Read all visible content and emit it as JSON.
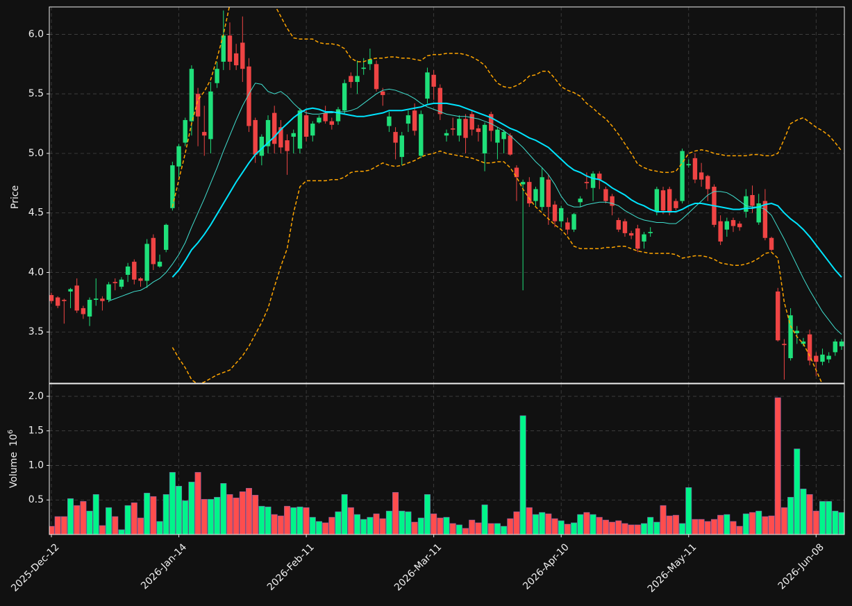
{
  "chart_data": {
    "type": "candlestick",
    "y_label": "Price",
    "volume_label": "Volume",
    "volume_scale_base": "10",
    "volume_scale_exponent": "6",
    "categories": [
      "2025-Dec-12",
      null,
      null,
      null,
      null,
      null,
      null,
      null,
      null,
      null,
      null,
      null,
      null,
      null,
      null,
      null,
      null,
      null,
      null,
      null,
      "2026-Jan-14",
      null,
      null,
      null,
      null,
      null,
      null,
      null,
      null,
      null,
      null,
      null,
      null,
      null,
      null,
      null,
      null,
      null,
      null,
      null,
      "2026-Feb-11",
      null,
      null,
      null,
      null,
      null,
      null,
      null,
      null,
      null,
      null,
      null,
      null,
      null,
      null,
      null,
      null,
      null,
      null,
      null,
      "2026-Mar-11",
      null,
      null,
      null,
      null,
      null,
      null,
      null,
      null,
      null,
      null,
      null,
      null,
      null,
      null,
      null,
      null,
      null,
      null,
      null,
      "2026-Apr-10",
      null,
      null,
      null,
      null,
      null,
      null,
      null,
      null,
      null,
      null,
      null,
      null,
      null,
      null,
      null,
      null,
      null,
      null,
      null,
      "2026-May-11",
      null,
      null,
      null,
      null,
      null,
      null,
      null,
      null,
      null,
      null,
      null,
      null,
      null,
      null,
      null,
      null,
      null,
      null,
      null,
      "2026-Jun-08",
      null,
      null,
      null,
      null
    ],
    "open": [
      3.81,
      3.79,
      3.77,
      3.84,
      3.89,
      3.7,
      3.63,
      3.77,
      3.78,
      3.77,
      3.92,
      3.88,
      3.98,
      4.09,
      3.95,
      3.93,
      4.29,
      4.05,
      4.19,
      4.54,
      4.89,
      5.09,
      5.27,
      5.5,
      5.18,
      5.12,
      5.59,
      5.77,
      5.99,
      5.84,
      5.93,
      5.73,
      5.28,
      4.98,
      5.06,
      5.34,
      5.22,
      5.11,
      5.14,
      5.04,
      5.32,
      5.15,
      5.26,
      5.34,
      5.27,
      5.27,
      5.36,
      5.65,
      5.6,
      5.71,
      5.75,
      5.75,
      5.52,
      5.23,
      5.18,
      4.97,
      5.25,
      5.36,
      4.98,
      5.46,
      5.66,
      5.55,
      5.15,
      5.21,
      5.15,
      5.29,
      5.33,
      5.21,
      5.0,
      5.33,
      5.09,
      5.12,
      5.15,
      4.88,
      4.74,
      4.76,
      4.6,
      4.55,
      4.78,
      4.57,
      4.43,
      4.42,
      4.36,
      4.59,
      4.76,
      4.71,
      4.83,
      4.7,
      4.64,
      4.44,
      4.43,
      4.33,
      4.37,
      4.26,
      4.33,
      4.51,
      4.69,
      4.7,
      4.6,
      4.6,
      4.9,
      4.96,
      4.84,
      4.81,
      4.72,
      4.43,
      4.36,
      4.44,
      4.41,
      4.51,
      4.65,
      4.42,
      4.6,
      4.29,
      3.84,
      3.4,
      3.28,
      3.49,
      3.4,
      3.48,
      3.3,
      3.25,
      3.27,
      3.33,
      3.38
    ],
    "high": [
      3.83,
      3.8,
      3.78,
      3.87,
      3.95,
      3.72,
      3.79,
      3.95,
      3.8,
      3.92,
      3.95,
      3.96,
      4.08,
      4.11,
      3.96,
      4.28,
      4.32,
      4.15,
      4.41,
      4.93,
      5.08,
      5.3,
      5.74,
      5.55,
      5.4,
      5.6,
      5.77,
      6.2,
      6.1,
      5.92,
      6.15,
      5.8,
      5.3,
      5.16,
      5.32,
      5.4,
      5.28,
      5.16,
      5.2,
      5.38,
      5.36,
      5.27,
      5.32,
      5.4,
      5.3,
      5.39,
      5.62,
      5.68,
      5.78,
      5.8,
      5.88,
      5.78,
      5.55,
      5.35,
      5.22,
      5.18,
      5.36,
      5.42,
      5.36,
      5.72,
      5.7,
      5.58,
      5.2,
      5.3,
      5.32,
      5.33,
      5.36,
      5.24,
      5.26,
      5.35,
      5.22,
      5.2,
      5.17,
      4.9,
      4.78,
      4.8,
      4.72,
      4.88,
      4.82,
      4.6,
      4.56,
      4.46,
      4.5,
      4.64,
      4.84,
      4.85,
      4.85,
      4.72,
      4.66,
      4.46,
      4.45,
      4.35,
      4.4,
      4.34,
      4.38,
      4.72,
      4.72,
      4.72,
      4.62,
      5.04,
      4.95,
      5.0,
      4.92,
      4.82,
      4.74,
      4.48,
      4.46,
      4.46,
      4.43,
      4.7,
      4.73,
      4.66,
      4.7,
      4.3,
      3.87,
      3.44,
      3.7,
      3.55,
      3.45,
      3.52,
      3.33,
      3.36,
      3.33,
      3.44,
      3.44
    ],
    "low": [
      3.74,
      3.7,
      3.57,
      3.7,
      3.66,
      3.61,
      3.55,
      3.72,
      3.68,
      3.75,
      3.85,
      3.86,
      3.92,
      3.9,
      3.88,
      3.87,
      4.02,
      4.04,
      4.17,
      4.52,
      4.8,
      5.06,
      5.15,
      5.06,
      4.98,
      5.0,
      5.55,
      5.7,
      5.7,
      5.7,
      5.6,
      5.18,
      4.92,
      4.9,
      5.0,
      5.0,
      5.0,
      4.82,
      5.0,
      5.0,
      5.1,
      5.1,
      5.25,
      5.25,
      5.2,
      5.24,
      5.33,
      5.55,
      5.5,
      5.66,
      5.7,
      5.52,
      5.4,
      5.18,
      4.95,
      4.9,
      5.18,
      5.15,
      4.96,
      5.42,
      5.45,
      5.28,
      5.1,
      5.15,
      5.1,
      5.0,
      5.15,
      5.1,
      4.85,
      5.1,
      4.95,
      5.0,
      4.98,
      4.6,
      3.85,
      4.55,
      4.55,
      4.52,
      4.4,
      4.38,
      4.38,
      4.32,
      4.34,
      4.55,
      4.7,
      4.6,
      4.7,
      4.58,
      4.48,
      4.34,
      4.3,
      4.28,
      4.17,
      4.2,
      4.3,
      4.48,
      4.49,
      4.48,
      4.52,
      4.58,
      4.88,
      4.75,
      4.72,
      4.6,
      4.38,
      4.23,
      4.3,
      4.34,
      4.35,
      4.46,
      4.5,
      4.4,
      4.27,
      4.18,
      3.42,
      3.1,
      3.26,
      3.4,
      3.38,
      3.22,
      3.13,
      3.22,
      3.24,
      3.3,
      3.35
    ],
    "close": [
      3.76,
      3.72,
      3.76,
      3.86,
      3.68,
      3.65,
      3.77,
      3.78,
      3.76,
      3.9,
      3.91,
      3.94,
      4.05,
      3.94,
      3.93,
      4.24,
      4.07,
      4.09,
      4.4,
      4.9,
      5.06,
      5.28,
      5.71,
      5.31,
      5.15,
      5.52,
      5.71,
      5.99,
      5.77,
      5.74,
      5.71,
      5.23,
      4.99,
      5.14,
      5.28,
      5.08,
      5.05,
      5.02,
      5.17,
      5.36,
      5.14,
      5.25,
      5.3,
      5.27,
      5.24,
      5.37,
      5.59,
      5.6,
      5.65,
      5.72,
      5.79,
      5.54,
      5.49,
      5.31,
      5.09,
      5.15,
      5.32,
      5.19,
      5.33,
      5.68,
      5.56,
      5.33,
      5.17,
      5.2,
      5.29,
      5.13,
      5.2,
      5.18,
      5.24,
      5.19,
      5.2,
      5.18,
      4.99,
      4.8,
      4.76,
      4.58,
      4.7,
      4.8,
      4.55,
      4.43,
      4.54,
      4.36,
      4.49,
      4.62,
      4.75,
      4.83,
      4.78,
      4.6,
      4.56,
      4.36,
      4.33,
      4.31,
      4.2,
      4.32,
      4.34,
      4.7,
      4.52,
      4.51,
      4.54,
      5.02,
      4.91,
      4.78,
      4.78,
      4.7,
      4.4,
      4.26,
      4.43,
      4.39,
      4.38,
      4.64,
      4.56,
      4.58,
      4.29,
      4.19,
      3.43,
      3.39,
      3.64,
      3.51,
      3.42,
      3.26,
      3.25,
      3.31,
      3.3,
      3.42,
      3.42
    ],
    "volume": [
      0.12,
      0.26,
      0.26,
      0.52,
      0.42,
      0.48,
      0.34,
      0.58,
      0.13,
      0.39,
      0.26,
      0.07,
      0.42,
      0.46,
      0.24,
      0.6,
      0.55,
      0.19,
      0.58,
      0.9,
      0.7,
      0.49,
      0.76,
      0.9,
      0.51,
      0.51,
      0.54,
      0.74,
      0.58,
      0.53,
      0.62,
      0.67,
      0.57,
      0.41,
      0.4,
      0.29,
      0.27,
      0.41,
      0.39,
      0.4,
      0.39,
      0.25,
      0.19,
      0.17,
      0.25,
      0.33,
      0.58,
      0.39,
      0.29,
      0.22,
      0.25,
      0.3,
      0.23,
      0.34,
      0.61,
      0.34,
      0.33,
      0.18,
      0.24,
      0.58,
      0.3,
      0.24,
      0.25,
      0.16,
      0.14,
      0.09,
      0.21,
      0.17,
      0.43,
      0.16,
      0.16,
      0.12,
      0.23,
      0.33,
      1.72,
      0.39,
      0.29,
      0.32,
      0.3,
      0.23,
      0.2,
      0.15,
      0.17,
      0.29,
      0.32,
      0.29,
      0.25,
      0.21,
      0.18,
      0.2,
      0.16,
      0.14,
      0.14,
      0.16,
      0.25,
      0.18,
      0.42,
      0.27,
      0.28,
      0.16,
      0.68,
      0.22,
      0.22,
      0.19,
      0.22,
      0.28,
      0.29,
      0.19,
      0.12,
      0.3,
      0.32,
      0.34,
      0.26,
      0.27,
      1.98,
      0.39,
      0.54,
      1.24,
      0.66,
      0.58,
      0.34,
      0.48,
      0.48,
      0.34,
      0.32
    ],
    "up_color": "#1fe07a",
    "down_color": "#ef4444",
    "volume_up_color": "#00f58a",
    "volume_down_color": "#ff4d4d",
    "overlays": [
      {
        "color": "#40e0d0",
        "width": 1,
        "dash": false,
        "values": [
          null,
          null,
          null,
          null,
          null,
          null,
          null,
          null,
          null,
          3.76,
          3.78,
          3.8,
          3.82,
          3.84,
          3.85,
          3.88,
          3.92,
          3.95,
          4.0,
          4.07,
          4.15,
          4.25,
          4.38,
          4.5,
          4.62,
          4.75,
          4.88,
          5.02,
          5.15,
          5.28,
          5.4,
          5.5,
          5.59,
          5.58,
          5.52,
          5.5,
          5.52,
          5.48,
          5.42,
          5.37,
          5.34,
          5.33,
          5.33,
          5.34,
          5.34,
          5.35,
          5.35,
          5.36,
          5.38,
          5.42,
          5.46,
          5.5,
          5.53,
          5.54,
          5.53,
          5.51,
          5.49,
          5.46,
          5.42,
          5.39,
          5.37,
          5.35,
          5.33,
          5.32,
          5.31,
          5.31,
          5.3,
          5.29,
          5.27,
          5.25,
          5.22,
          5.19,
          5.15,
          5.1,
          5.05,
          4.99,
          4.93,
          4.88,
          4.82,
          4.74,
          4.64,
          4.57,
          4.55,
          4.55,
          4.57,
          4.58,
          4.59,
          4.59,
          4.58,
          4.56,
          4.52,
          4.49,
          4.46,
          4.44,
          4.43,
          4.42,
          4.42,
          4.41,
          4.41,
          4.45,
          4.5,
          4.55,
          4.6,
          4.65,
          4.68,
          4.68,
          4.67,
          4.64,
          4.6,
          4.56,
          4.55,
          4.55,
          4.53,
          4.48,
          4.38,
          4.28,
          4.17,
          4.06,
          3.95,
          3.85,
          3.76,
          3.67,
          3.6,
          3.53,
          3.48
        ]
      },
      {
        "color": "#00e5ff",
        "width": 2,
        "dash": false,
        "values": [
          null,
          null,
          null,
          null,
          null,
          null,
          null,
          null,
          null,
          null,
          null,
          null,
          null,
          null,
          null,
          null,
          null,
          null,
          null,
          3.96,
          4.02,
          4.1,
          4.19,
          4.25,
          4.32,
          4.4,
          4.49,
          4.58,
          4.67,
          4.76,
          4.84,
          4.92,
          4.99,
          5.04,
          5.09,
          5.14,
          5.2,
          5.25,
          5.3,
          5.34,
          5.37,
          5.38,
          5.37,
          5.35,
          5.35,
          5.34,
          5.33,
          5.32,
          5.31,
          5.31,
          5.32,
          5.33,
          5.34,
          5.36,
          5.36,
          5.36,
          5.37,
          5.38,
          5.39,
          5.41,
          5.42,
          5.42,
          5.42,
          5.41,
          5.4,
          5.38,
          5.36,
          5.34,
          5.32,
          5.3,
          5.27,
          5.24,
          5.21,
          5.19,
          5.16,
          5.13,
          5.11,
          5.08,
          5.05,
          5.0,
          4.95,
          4.9,
          4.86,
          4.84,
          4.81,
          4.79,
          4.78,
          4.75,
          4.71,
          4.68,
          4.65,
          4.61,
          4.58,
          4.56,
          4.53,
          4.51,
          4.51,
          4.51,
          4.51,
          4.53,
          4.56,
          4.58,
          4.58,
          4.57,
          4.56,
          4.55,
          4.54,
          4.53,
          4.53,
          4.54,
          4.54,
          4.55,
          4.57,
          4.58,
          4.56,
          4.5,
          4.45,
          4.41,
          4.36,
          4.3,
          4.23,
          4.16,
          4.09,
          4.02,
          3.96
        ]
      },
      {
        "color": "#ffa500",
        "width": 1.5,
        "dash": true,
        "values": [
          null,
          null,
          null,
          null,
          null,
          null,
          null,
          null,
          null,
          null,
          null,
          null,
          null,
          null,
          null,
          null,
          null,
          null,
          null,
          4.55,
          4.78,
          5.0,
          5.25,
          5.45,
          5.52,
          5.62,
          5.8,
          6.0,
          6.25,
          6.4,
          6.5,
          6.55,
          6.55,
          6.5,
          6.4,
          6.25,
          6.15,
          6.05,
          5.97,
          5.96,
          5.96,
          5.96,
          5.93,
          5.92,
          5.92,
          5.91,
          5.88,
          5.8,
          5.77,
          5.77,
          5.79,
          5.8,
          5.8,
          5.81,
          5.81,
          5.8,
          5.8,
          5.79,
          5.78,
          5.82,
          5.83,
          5.83,
          5.84,
          5.84,
          5.84,
          5.83,
          5.81,
          5.78,
          5.74,
          5.66,
          5.59,
          5.56,
          5.55,
          5.57,
          5.6,
          5.65,
          5.66,
          5.69,
          5.69,
          5.63,
          5.56,
          5.53,
          5.51,
          5.48,
          5.42,
          5.38,
          5.33,
          5.29,
          5.23,
          5.16,
          5.08,
          5.0,
          4.91,
          4.88,
          4.86,
          4.85,
          4.84,
          4.84,
          4.85,
          4.92,
          5.0,
          5.02,
          5.03,
          5.02,
          5.0,
          4.99,
          4.98,
          4.98,
          4.98,
          4.98,
          4.99,
          4.99,
          4.98,
          4.98,
          5.0,
          5.12,
          5.25,
          5.28,
          5.3,
          5.26,
          5.22,
          5.19,
          5.15,
          5.09,
          5.02
        ]
      },
      {
        "color": "#ffa500",
        "width": 1.5,
        "dash": true,
        "values": [
          null,
          null,
          null,
          null,
          null,
          null,
          null,
          null,
          null,
          null,
          null,
          null,
          null,
          null,
          null,
          null,
          null,
          null,
          null,
          3.37,
          3.28,
          3.2,
          3.1,
          3.06,
          3.08,
          3.11,
          3.14,
          3.16,
          3.18,
          3.24,
          3.3,
          3.38,
          3.48,
          3.58,
          3.7,
          3.88,
          4.05,
          4.2,
          4.5,
          4.72,
          4.77,
          4.77,
          4.77,
          4.77,
          4.78,
          4.78,
          4.8,
          4.84,
          4.85,
          4.85,
          4.86,
          4.89,
          4.92,
          4.9,
          4.89,
          4.9,
          4.92,
          4.94,
          4.97,
          4.99,
          5.0,
          5.02,
          5.0,
          4.99,
          4.98,
          4.97,
          4.96,
          4.94,
          4.92,
          4.92,
          4.93,
          4.93,
          4.88,
          4.8,
          4.7,
          4.62,
          4.55,
          4.5,
          4.45,
          4.4,
          4.36,
          4.3,
          4.22,
          4.2,
          4.2,
          4.2,
          4.2,
          4.21,
          4.21,
          4.22,
          4.22,
          4.2,
          4.18,
          4.17,
          4.16,
          4.16,
          4.16,
          4.16,
          4.15,
          4.12,
          4.13,
          4.14,
          4.14,
          4.13,
          4.11,
          4.08,
          4.07,
          4.06,
          4.06,
          4.07,
          4.09,
          4.12,
          4.16,
          4.17,
          4.12,
          3.75,
          3.55,
          3.46,
          3.4,
          3.3,
          3.18,
          3.06,
          2.99,
          2.95,
          2.9
        ]
      }
    ],
    "ylim": [
      3.07,
      6.23
    ],
    "yticks": [
      3.5,
      {
        "value": 4,
        "label": "4.0"
      },
      4.5,
      {
        "value": 5,
        "label": "5.0"
      },
      5.5,
      {
        "value": 6,
        "label": "6.0"
      }
    ],
    "volume_ylim": [
      0,
      2.18
    ],
    "volume_yticks": [
      0.5,
      {
        "value": 1,
        "label": "1.0"
      },
      1.5,
      {
        "value": 2,
        "label": "2.0"
      }
    ],
    "grid": true
  }
}
